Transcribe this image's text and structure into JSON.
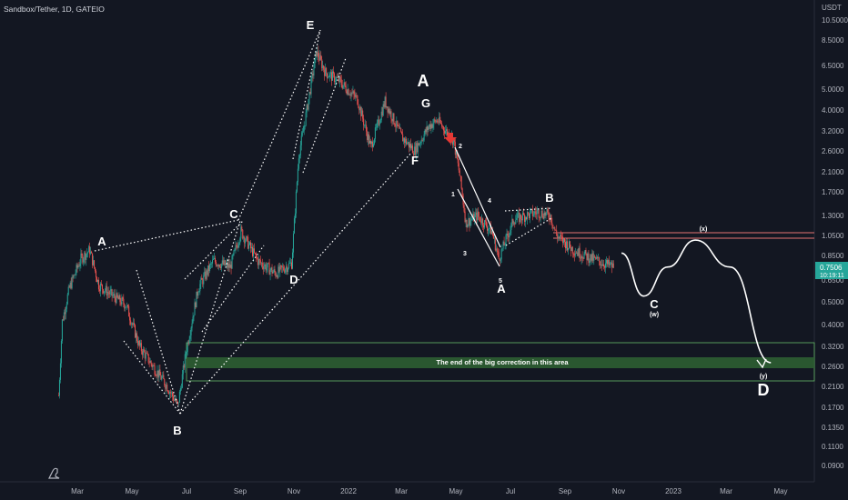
{
  "header": {
    "title": "Sandbox/Tether, 1D, GATEIO",
    "currency": "USDT"
  },
  "price_axis": {
    "labels": [
      "10.5000",
      "8.5000",
      "6.5000",
      "5.0000",
      "4.0000",
      "3.2000",
      "2.6000",
      "2.1000",
      "1.7000",
      "1.3000",
      "1.0500",
      "0.8500",
      "0.6500",
      "0.5000",
      "0.4000",
      "0.3200",
      "0.2600",
      "0.2100",
      "0.1700",
      "0.1350",
      "0.1100",
      "0.0900"
    ],
    "current_price": "0.7506",
    "countdown": "10:19:11",
    "current_color": "#26a69a"
  },
  "time_axis": {
    "labels": [
      "Mar",
      "May",
      "Jul",
      "Sep",
      "Nov",
      "2022",
      "Mar",
      "May",
      "Jul",
      "Sep",
      "Nov",
      "2023",
      "Mar",
      "May"
    ]
  },
  "annotations": {
    "A1": "A",
    "B1": "B",
    "C1": "C",
    "D1": "D",
    "E1": "E",
    "F1": "F",
    "G1": "G",
    "A_big": "A",
    "B2": "B",
    "A2": "A",
    "C2": "C",
    "D2": "D",
    "x": "(x)",
    "w": "(w)",
    "y": "(y)",
    "n1": "1",
    "n2": "2",
    "n3": "3",
    "n4": "4",
    "n5": "5",
    "zone_text": "The end of the big correction in this area"
  },
  "colors": {
    "background": "#131722",
    "up": "#26a69a",
    "down": "#ef5350",
    "zone": "#2e7d32",
    "resistance": "#e57373"
  },
  "chart_data": {
    "type": "candlestick",
    "title": "Sandbox/Tether, 1D, GATEIO",
    "y_scale": "log",
    "y_range": [
      0.08,
      12
    ],
    "x_range": [
      "2021-02-01",
      "2023-05-31"
    ],
    "path_points": [
      {
        "date": "2021-02-08",
        "price": 0.19
      },
      {
        "date": "2021-02-12",
        "price": 0.42
      },
      {
        "date": "2021-02-20",
        "price": 0.6
      },
      {
        "date": "2021-03-05",
        "price": 0.82
      },
      {
        "date": "2021-03-15",
        "price": 0.9
      },
      {
        "date": "2021-03-25",
        "price": 0.62
      },
      {
        "date": "2021-04-10",
        "price": 0.55
      },
      {
        "date": "2021-04-25",
        "price": 0.5
      },
      {
        "date": "2021-05-10",
        "price": 0.32
      },
      {
        "date": "2021-05-25",
        "price": 0.26
      },
      {
        "date": "2021-06-10",
        "price": 0.21
      },
      {
        "date": "2021-06-22",
        "price": 0.17
      },
      {
        "date": "2021-07-01",
        "price": 0.3
      },
      {
        "date": "2021-07-15",
        "price": 0.6
      },
      {
        "date": "2021-08-01",
        "price": 0.8
      },
      {
        "date": "2021-08-20",
        "price": 0.75
      },
      {
        "date": "2021-09-01",
        "price": 1.1
      },
      {
        "date": "2021-09-20",
        "price": 0.8
      },
      {
        "date": "2021-10-10",
        "price": 0.7
      },
      {
        "date": "2021-10-28",
        "price": 0.78
      },
      {
        "date": "2021-11-05",
        "price": 2.5
      },
      {
        "date": "2021-11-10",
        "price": 3.2
      },
      {
        "date": "2021-11-25",
        "price": 7.5
      },
      {
        "date": "2021-12-05",
        "price": 6.0
      },
      {
        "date": "2021-12-20",
        "price": 5.5
      },
      {
        "date": "2022-01-10",
        "price": 4.5
      },
      {
        "date": "2022-01-25",
        "price": 2.7
      },
      {
        "date": "2022-02-10",
        "price": 4.4
      },
      {
        "date": "2022-03-01",
        "price": 3.0
      },
      {
        "date": "2022-03-15",
        "price": 2.6
      },
      {
        "date": "2022-04-01",
        "price": 3.4
      },
      {
        "date": "2022-04-10",
        "price": 3.6
      },
      {
        "date": "2022-04-28",
        "price": 2.9
      },
      {
        "date": "2022-05-05",
        "price": 2.0
      },
      {
        "date": "2022-05-12",
        "price": 1.2
      },
      {
        "date": "2022-05-25",
        "price": 1.3
      },
      {
        "date": "2022-06-10",
        "price": 1.1
      },
      {
        "date": "2022-06-18",
        "price": 0.82
      },
      {
        "date": "2022-07-05",
        "price": 1.25
      },
      {
        "date": "2022-08-01",
        "price": 1.35
      },
      {
        "date": "2022-08-15",
        "price": 1.3
      },
      {
        "date": "2022-08-22",
        "price": 1.05
      },
      {
        "date": "2022-09-10",
        "price": 0.9
      },
      {
        "date": "2022-10-01",
        "price": 0.82
      },
      {
        "date": "2022-10-25",
        "price": 0.75
      }
    ],
    "levels": {
      "resistance_upper": 1.06,
      "resistance_lower": 0.99,
      "zone_top": 0.335,
      "zone_bottom": 0.225,
      "band_top": 0.28,
      "band_bottom": 0.255,
      "last_price": 0.7506
    },
    "wave_points": {
      "A1": {
        "date": "2021-03-10",
        "price": 0.95
      },
      "B1": {
        "date": "2021-06-22",
        "price": 0.155
      },
      "C1": {
        "date": "2021-09-02",
        "price": 1.25
      },
      "D1": {
        "date": "2021-10-28",
        "price": 0.6
      },
      "E1": {
        "date": "2021-11-25",
        "price": 9.5
      },
      "F1": {
        "date": "2022-03-20",
        "price": 2.35
      },
      "G1": {
        "date": "2022-04-10",
        "price": 4.1
      },
      "B2": {
        "date": "2022-08-20",
        "price": 1.55
      },
      "A2": {
        "date": "2022-06-18",
        "price": 0.55
      },
      "C2": {
        "date": "2022-11-28",
        "price": 0.55
      },
      "D2": {
        "date": "2023-04-20",
        "price": 0.21
      }
    },
    "projection": [
      {
        "date": "2022-11-03",
        "price": 0.87
      },
      {
        "date": "2022-11-28",
        "price": 0.55
      },
      {
        "date": "2022-12-25",
        "price": 0.75
      },
      {
        "date": "2023-01-25",
        "price": 1.0
      },
      {
        "date": "2023-03-05",
        "price": 0.75
      },
      {
        "date": "2023-04-20",
        "price": 0.27
      }
    ]
  }
}
